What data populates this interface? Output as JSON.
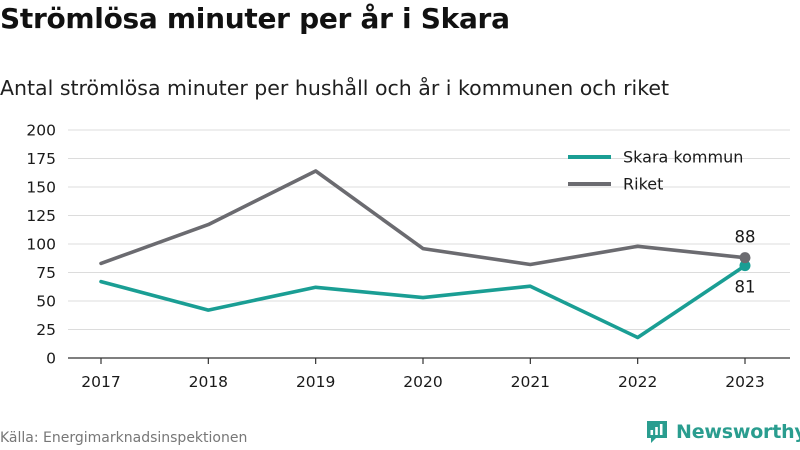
{
  "header": {
    "title": "Strömlösa minuter per år i Skara",
    "subtitle": "Antal strömlösa minuter per hushåll och år i kommunen och riket"
  },
  "footer": {
    "source": "Källa: Energimarknadsinspektionen",
    "brand": "Newsworthy",
    "brand_icon": "newsworthy-logo-icon"
  },
  "colors": {
    "skara": "#1a9e94",
    "riket": "#6b6b70",
    "grid": "#dcdcdc",
    "axis": "#333333",
    "brand": "#2a9d8f"
  },
  "chart_data": {
    "type": "line",
    "x": [
      "2017",
      "2018",
      "2019",
      "2020",
      "2021",
      "2022",
      "2023"
    ],
    "series": [
      {
        "name": "Skara kommun",
        "values": [
          67,
          42,
          62,
          53,
          63,
          18,
          81
        ],
        "end_label": "81"
      },
      {
        "name": "Riket",
        "values": [
          83,
          117,
          164,
          96,
          82,
          98,
          88
        ],
        "end_label": "88"
      }
    ],
    "yticks": [
      0,
      25,
      50,
      75,
      100,
      125,
      150,
      175,
      200
    ],
    "ylim": [
      0,
      200
    ],
    "grid": true,
    "legend": "top-right"
  }
}
